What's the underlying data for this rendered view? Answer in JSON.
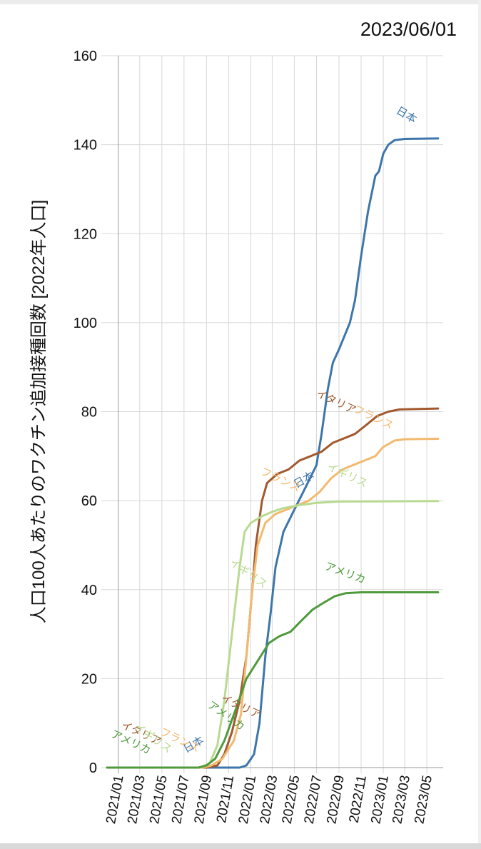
{
  "date_stamp": "2023/06/01",
  "chart_data": {
    "type": "line",
    "title": "",
    "ylabel": "人口100人あたりのワクチン追加接種回数 [2022年人口]",
    "xlabel": "",
    "ylim": [
      0,
      160
    ],
    "yticks": [
      0,
      20,
      40,
      60,
      80,
      100,
      120,
      140,
      160
    ],
    "xlim": [
      "2020-12-01",
      "2023-06-15"
    ],
    "xticks": [
      "2021/01",
      "2021/03",
      "2021/05",
      "2021/07",
      "2021/09",
      "2021/11",
      "2022/01",
      "2022/03",
      "2022/05",
      "2022/07",
      "2022/09",
      "2022/11",
      "2023/01",
      "2023/03",
      "2023/05"
    ],
    "grid": true,
    "legend": "none",
    "series": [
      {
        "name": "日本",
        "color": "#3d76aa",
        "points": [
          [
            "2020-12-01",
            0
          ],
          [
            "2021-11-01",
            0
          ],
          [
            "2021-12-01",
            0
          ],
          [
            "2021-12-20",
            0.5
          ],
          [
            "2022-01-10",
            3
          ],
          [
            "2022-01-25",
            10
          ],
          [
            "2022-02-10",
            25
          ],
          [
            "2022-02-25",
            35
          ],
          [
            "2022-03-10",
            45
          ],
          [
            "2022-04-01",
            53
          ],
          [
            "2022-05-01",
            58
          ],
          [
            "2022-06-01",
            63
          ],
          [
            "2022-07-01",
            68
          ],
          [
            "2022-07-15",
            75
          ],
          [
            "2022-08-01",
            85
          ],
          [
            "2022-08-15",
            91
          ],
          [
            "2022-09-01",
            94
          ],
          [
            "2022-10-01",
            100
          ],
          [
            "2022-10-15",
            105
          ],
          [
            "2022-11-01",
            115
          ],
          [
            "2022-11-20",
            125
          ],
          [
            "2022-12-10",
            133
          ],
          [
            "2022-12-20",
            134
          ],
          [
            "2023-01-01",
            138
          ],
          [
            "2023-01-15",
            140
          ],
          [
            "2023-02-01",
            141
          ],
          [
            "2023-03-01",
            141.3
          ],
          [
            "2023-06-01",
            141.4
          ]
        ],
        "labels": [
          {
            "text": "日本",
            "date": "2021-08-01",
            "value": 4.5,
            "rotate": -30
          },
          {
            "text": "日本",
            "date": "2022-06-01",
            "value": 64,
            "rotate": -30
          },
          {
            "text": "日本",
            "date": "2023-03-01",
            "value": 146,
            "rotate": 30
          }
        ]
      },
      {
        "name": "イタリア",
        "color": "#a1592f",
        "points": [
          [
            "2020-12-01",
            0
          ],
          [
            "2021-09-01",
            0
          ],
          [
            "2021-10-01",
            0.5
          ],
          [
            "2021-10-20",
            3
          ],
          [
            "2021-11-10",
            8
          ],
          [
            "2021-12-01",
            15
          ],
          [
            "2021-12-20",
            25
          ],
          [
            "2022-01-05",
            40
          ],
          [
            "2022-01-15",
            50
          ],
          [
            "2022-02-01",
            60
          ],
          [
            "2022-02-15",
            64
          ],
          [
            "2022-03-15",
            66
          ],
          [
            "2022-04-15",
            67
          ],
          [
            "2022-05-15",
            69
          ],
          [
            "2022-06-15",
            70
          ],
          [
            "2022-07-15",
            71
          ],
          [
            "2022-08-15",
            73
          ],
          [
            "2022-09-15",
            74
          ],
          [
            "2022-10-15",
            75
          ],
          [
            "2022-11-15",
            77
          ],
          [
            "2022-12-15",
            79
          ],
          [
            "2023-01-15",
            80
          ],
          [
            "2023-02-15",
            80.5
          ],
          [
            "2023-06-01",
            80.7
          ]
        ],
        "labels": [
          {
            "text": "イタリア",
            "date": "2021-03-01",
            "value": 7,
            "rotate": 25
          },
          {
            "text": "イタリア",
            "date": "2021-12-01",
            "value": 13,
            "rotate": 25
          },
          {
            "text": "イタリア",
            "date": "2022-08-20",
            "value": 81.5,
            "rotate": 25
          }
        ]
      },
      {
        "name": "フランス",
        "color": "#f3b96f",
        "points": [
          [
            "2020-12-01",
            0
          ],
          [
            "2021-08-20",
            0
          ],
          [
            "2021-09-15",
            0.5
          ],
          [
            "2021-10-15",
            2
          ],
          [
            "2021-11-15",
            6
          ],
          [
            "2021-12-05",
            12
          ],
          [
            "2021-12-20",
            25
          ],
          [
            "2022-01-05",
            40
          ],
          [
            "2022-01-20",
            50
          ],
          [
            "2022-02-10",
            55
          ],
          [
            "2022-03-10",
            57
          ],
          [
            "2022-04-10",
            58
          ],
          [
            "2022-05-10",
            59
          ],
          [
            "2022-06-10",
            60
          ],
          [
            "2022-07-10",
            62
          ],
          [
            "2022-08-10",
            65
          ],
          [
            "2022-09-10",
            67
          ],
          [
            "2022-10-10",
            68
          ],
          [
            "2022-11-10",
            69
          ],
          [
            "2022-12-10",
            70
          ],
          [
            "2022-12-31",
            72
          ],
          [
            "2023-02-01",
            73.5
          ],
          [
            "2023-03-01",
            73.8
          ],
          [
            "2023-06-01",
            73.9
          ]
        ],
        "labels": [
          {
            "text": "フランス",
            "date": "2021-06-15",
            "value": 5.5,
            "rotate": 25
          },
          {
            "text": "フランス",
            "date": "2022-03-20",
            "value": 64,
            "rotate": 25
          },
          {
            "text": "フランス",
            "date": "2022-12-01",
            "value": 78,
            "rotate": 25
          }
        ]
      },
      {
        "name": "イギリス",
        "color": "#b8da90",
        "points": [
          [
            "2020-12-01",
            0
          ],
          [
            "2021-08-15",
            0
          ],
          [
            "2021-09-10",
            1
          ],
          [
            "2021-10-01",
            5
          ],
          [
            "2021-10-20",
            15
          ],
          [
            "2021-11-10",
            30
          ],
          [
            "2021-12-01",
            45
          ],
          [
            "2021-12-15",
            53
          ],
          [
            "2022-01-01",
            55
          ],
          [
            "2022-02-01",
            56.5
          ],
          [
            "2022-03-01",
            57.5
          ],
          [
            "2022-04-01",
            58.3
          ],
          [
            "2022-05-15",
            59
          ],
          [
            "2022-07-01",
            59.5
          ],
          [
            "2022-09-01",
            59.8
          ],
          [
            "2023-06-01",
            59.9
          ]
        ],
        "labels": [
          {
            "text": "イギリス",
            "date": "2021-04-01",
            "value": 6,
            "rotate": 35
          },
          {
            "text": "イギリス",
            "date": "2021-12-20",
            "value": 43,
            "rotate": 35
          },
          {
            "text": "イギリス",
            "date": "2022-09-20",
            "value": 65,
            "rotate": 25
          }
        ]
      },
      {
        "name": "アメリカ",
        "color": "#4f9a3c",
        "points": [
          [
            "2020-12-01",
            0
          ],
          [
            "2021-08-10",
            0
          ],
          [
            "2021-09-01",
            0.5
          ],
          [
            "2021-09-25",
            2
          ],
          [
            "2021-10-20",
            6
          ],
          [
            "2021-11-20",
            13
          ],
          [
            "2021-12-20",
            20
          ],
          [
            "2022-01-20",
            24
          ],
          [
            "2022-02-20",
            28
          ],
          [
            "2022-03-20",
            29.5
          ],
          [
            "2022-04-20",
            30.5
          ],
          [
            "2022-05-20",
            33
          ],
          [
            "2022-06-20",
            35.5
          ],
          [
            "2022-07-20",
            37
          ],
          [
            "2022-08-20",
            38.5
          ],
          [
            "2022-09-20",
            39.2
          ],
          [
            "2022-11-01",
            39.4
          ],
          [
            "2023-06-01",
            39.4
          ]
        ],
        "labels": [
          {
            "text": "アメリカ",
            "date": "2021-02-01",
            "value": 5,
            "rotate": 25
          },
          {
            "text": "アメリカ",
            "date": "2021-10-20",
            "value": 11,
            "rotate": 35
          },
          {
            "text": "アメリカ",
            "date": "2022-09-15",
            "value": 43,
            "rotate": 20
          }
        ]
      }
    ]
  }
}
